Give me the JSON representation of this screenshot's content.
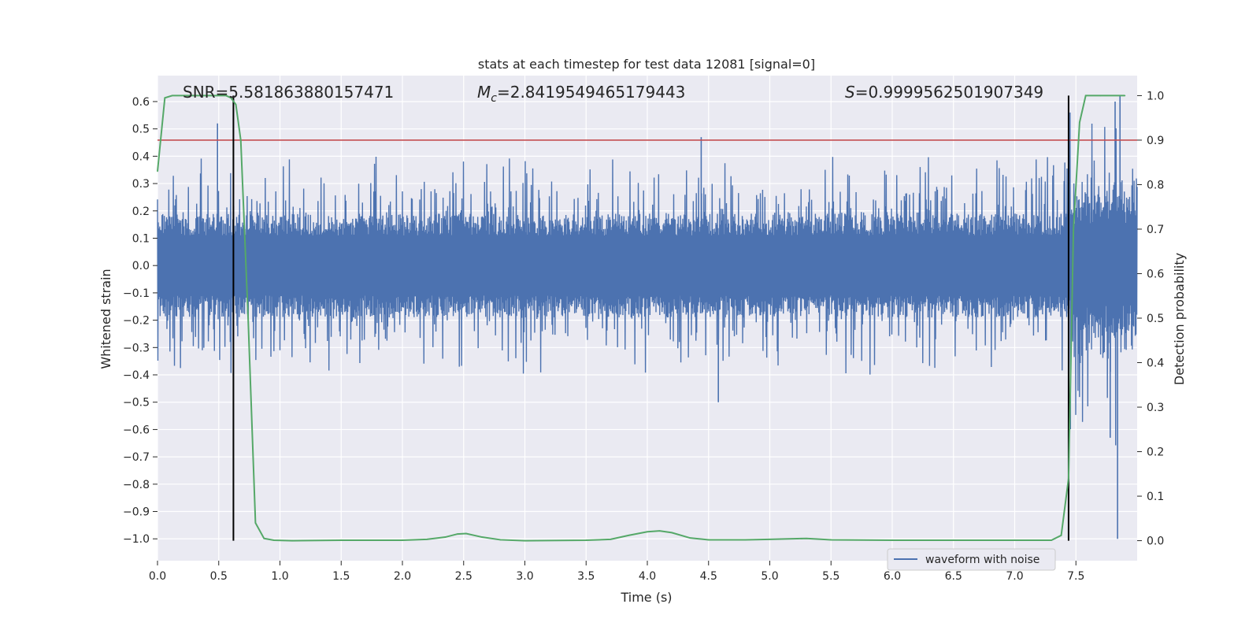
{
  "chart_data": {
    "type": "line",
    "title": "stats at each timestep for test data 12081 [signal=0]",
    "xlabel": "Time (s)",
    "ylabel": "Whitened strain",
    "ylabel_right": "Detection probability",
    "xlim": [
      0.0,
      8.0
    ],
    "ylim": [
      -1.08,
      0.695
    ],
    "ylim_right": [
      -0.045,
      1.045
    ],
    "x_ticks": [
      "0.0",
      "0.5",
      "1.0",
      "1.5",
      "2.0",
      "2.5",
      "3.0",
      "3.5",
      "4.0",
      "4.5",
      "5.0",
      "5.5",
      "6.0",
      "6.5",
      "7.0",
      "7.5"
    ],
    "y_ticks": [
      "0.6",
      "0.5",
      "0.4",
      "0.3",
      "0.2",
      "0.1",
      "0.0",
      "−0.1",
      "−0.2",
      "−0.3",
      "−0.4",
      "−0.5",
      "−0.6",
      "−0.7",
      "−0.8",
      "−0.9",
      "−1.0"
    ],
    "y_right_ticks": [
      "1.0",
      "0.9",
      "0.8",
      "0.7",
      "0.6",
      "0.5",
      "0.4",
      "0.3",
      "0.2",
      "0.1",
      "0.0"
    ],
    "grid": true,
    "legend": {
      "placement": "lower-right",
      "entries": [
        "waveform with noise"
      ]
    },
    "stats_text": {
      "snr": "SNR=5.581863880157471",
      "mc_symbol": "M",
      "mc_sub": "c",
      "mc_value": "=2.8419549465179443",
      "s_symbol": "S",
      "s_value": "=0.9999562501907349"
    },
    "colors": {
      "waveform": "#4c72b0",
      "probability": "#55a868",
      "threshold": "#c44e52",
      "markers": "#000000",
      "axes_bg": "#eaeaf2",
      "grid": "#ffffff"
    },
    "threshold_probability": 0.9,
    "vertical_markers_time": [
      0.62,
      7.44
    ],
    "waveform_noise": {
      "typical_peak": 0.27,
      "max_peak": 0.52,
      "min_trough": -0.5,
      "late_spike_min": -1.0,
      "late_spike_time": 7.84
    },
    "series": [
      {
        "name": "waveform with noise",
        "axis": "left"
      },
      {
        "axis": "right",
        "x": [
          0.0,
          0.06,
          0.12,
          0.2,
          0.3,
          0.4,
          0.5,
          0.56,
          0.6,
          0.64,
          0.68,
          0.74,
          0.8,
          0.87,
          0.95,
          1.1,
          1.5,
          2.0,
          2.2,
          2.35,
          2.45,
          2.52,
          2.65,
          2.8,
          3.0,
          3.5,
          3.7,
          3.85,
          4.0,
          4.1,
          4.2,
          4.35,
          4.5,
          4.8,
          5.0,
          5.3,
          5.5,
          6.0,
          7.0,
          7.3,
          7.38,
          7.44,
          7.48,
          7.53,
          7.58,
          7.7,
          7.9
        ],
        "y": [
          0.83,
          0.995,
          1.0,
          1.0,
          1.0,
          1.0,
          1.0,
          1.0,
          0.995,
          0.98,
          0.9,
          0.5,
          0.04,
          0.005,
          0.001,
          0.0,
          0.001,
          0.001,
          0.003,
          0.008,
          0.015,
          0.016,
          0.008,
          0.002,
          0.0,
          0.001,
          0.003,
          0.012,
          0.02,
          0.022,
          0.018,
          0.006,
          0.002,
          0.002,
          0.003,
          0.005,
          0.002,
          0.001,
          0.001,
          0.001,
          0.012,
          0.14,
          0.7,
          0.94,
          1.0,
          1.0,
          1.0
        ]
      }
    ]
  }
}
